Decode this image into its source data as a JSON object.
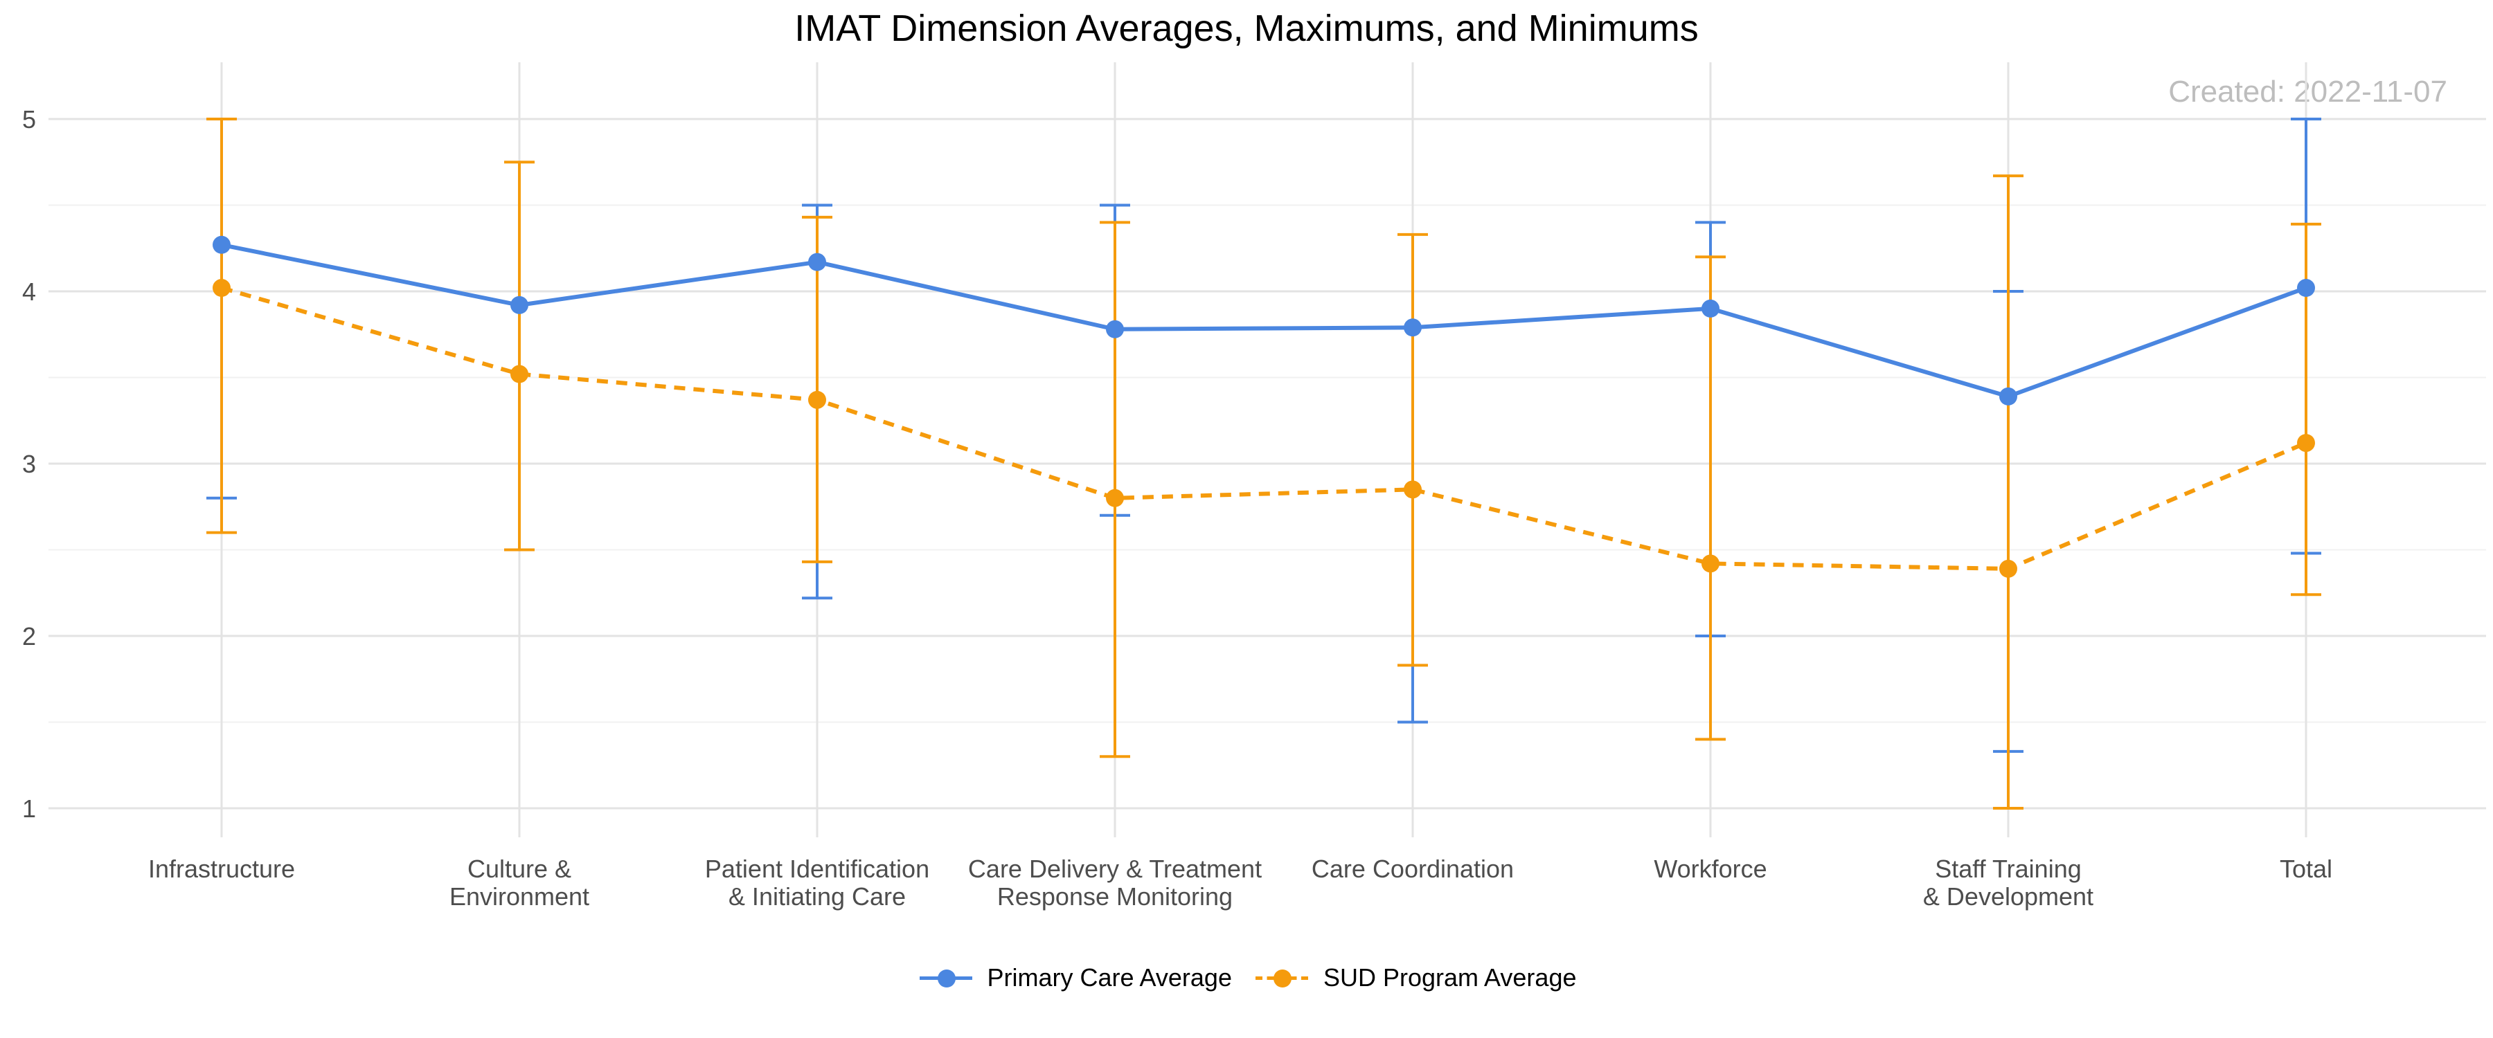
{
  "chart_data": {
    "type": "line",
    "title": "IMAT Dimension Averages, Maximums, and Minimums",
    "annotation": "Created: 2022-11-07",
    "categories": [
      [
        "Infrastructure"
      ],
      [
        "Culture &",
        "Environment"
      ],
      [
        "Patient Identification",
        "& Initiating Care"
      ],
      [
        "Care Delivery & Treatment",
        "Response Monitoring"
      ],
      [
        "Care Coordination"
      ],
      [
        "Workforce"
      ],
      [
        "Staff Training",
        "& Development"
      ],
      [
        "Total"
      ]
    ],
    "ylim": [
      1,
      5
    ],
    "yticks": [
      1,
      2,
      3,
      4,
      5
    ],
    "grid": true,
    "legend_position": "bottom",
    "series": [
      {
        "name": "Primary Care Average",
        "color": "#4a86e0",
        "line_style": "solid",
        "values": [
          4.27,
          3.92,
          4.17,
          3.78,
          3.79,
          3.9,
          3.39,
          4.02
        ],
        "max": [
          null,
          null,
          4.5,
          4.5,
          null,
          4.4,
          4.0,
          5.0
        ],
        "min": [
          2.8,
          null,
          2.22,
          2.7,
          1.5,
          2.0,
          1.33,
          2.48
        ]
      },
      {
        "name": "SUD Program Average",
        "color": "#f59b0c",
        "line_style": "dashed",
        "values": [
          4.02,
          3.52,
          3.37,
          2.8,
          2.85,
          2.42,
          2.39,
          3.12
        ],
        "max": [
          5.0,
          4.75,
          4.43,
          4.4,
          4.33,
          4.2,
          4.67,
          4.39
        ],
        "min": [
          2.6,
          2.5,
          2.43,
          1.3,
          1.83,
          1.4,
          1.0,
          2.24
        ]
      }
    ]
  }
}
